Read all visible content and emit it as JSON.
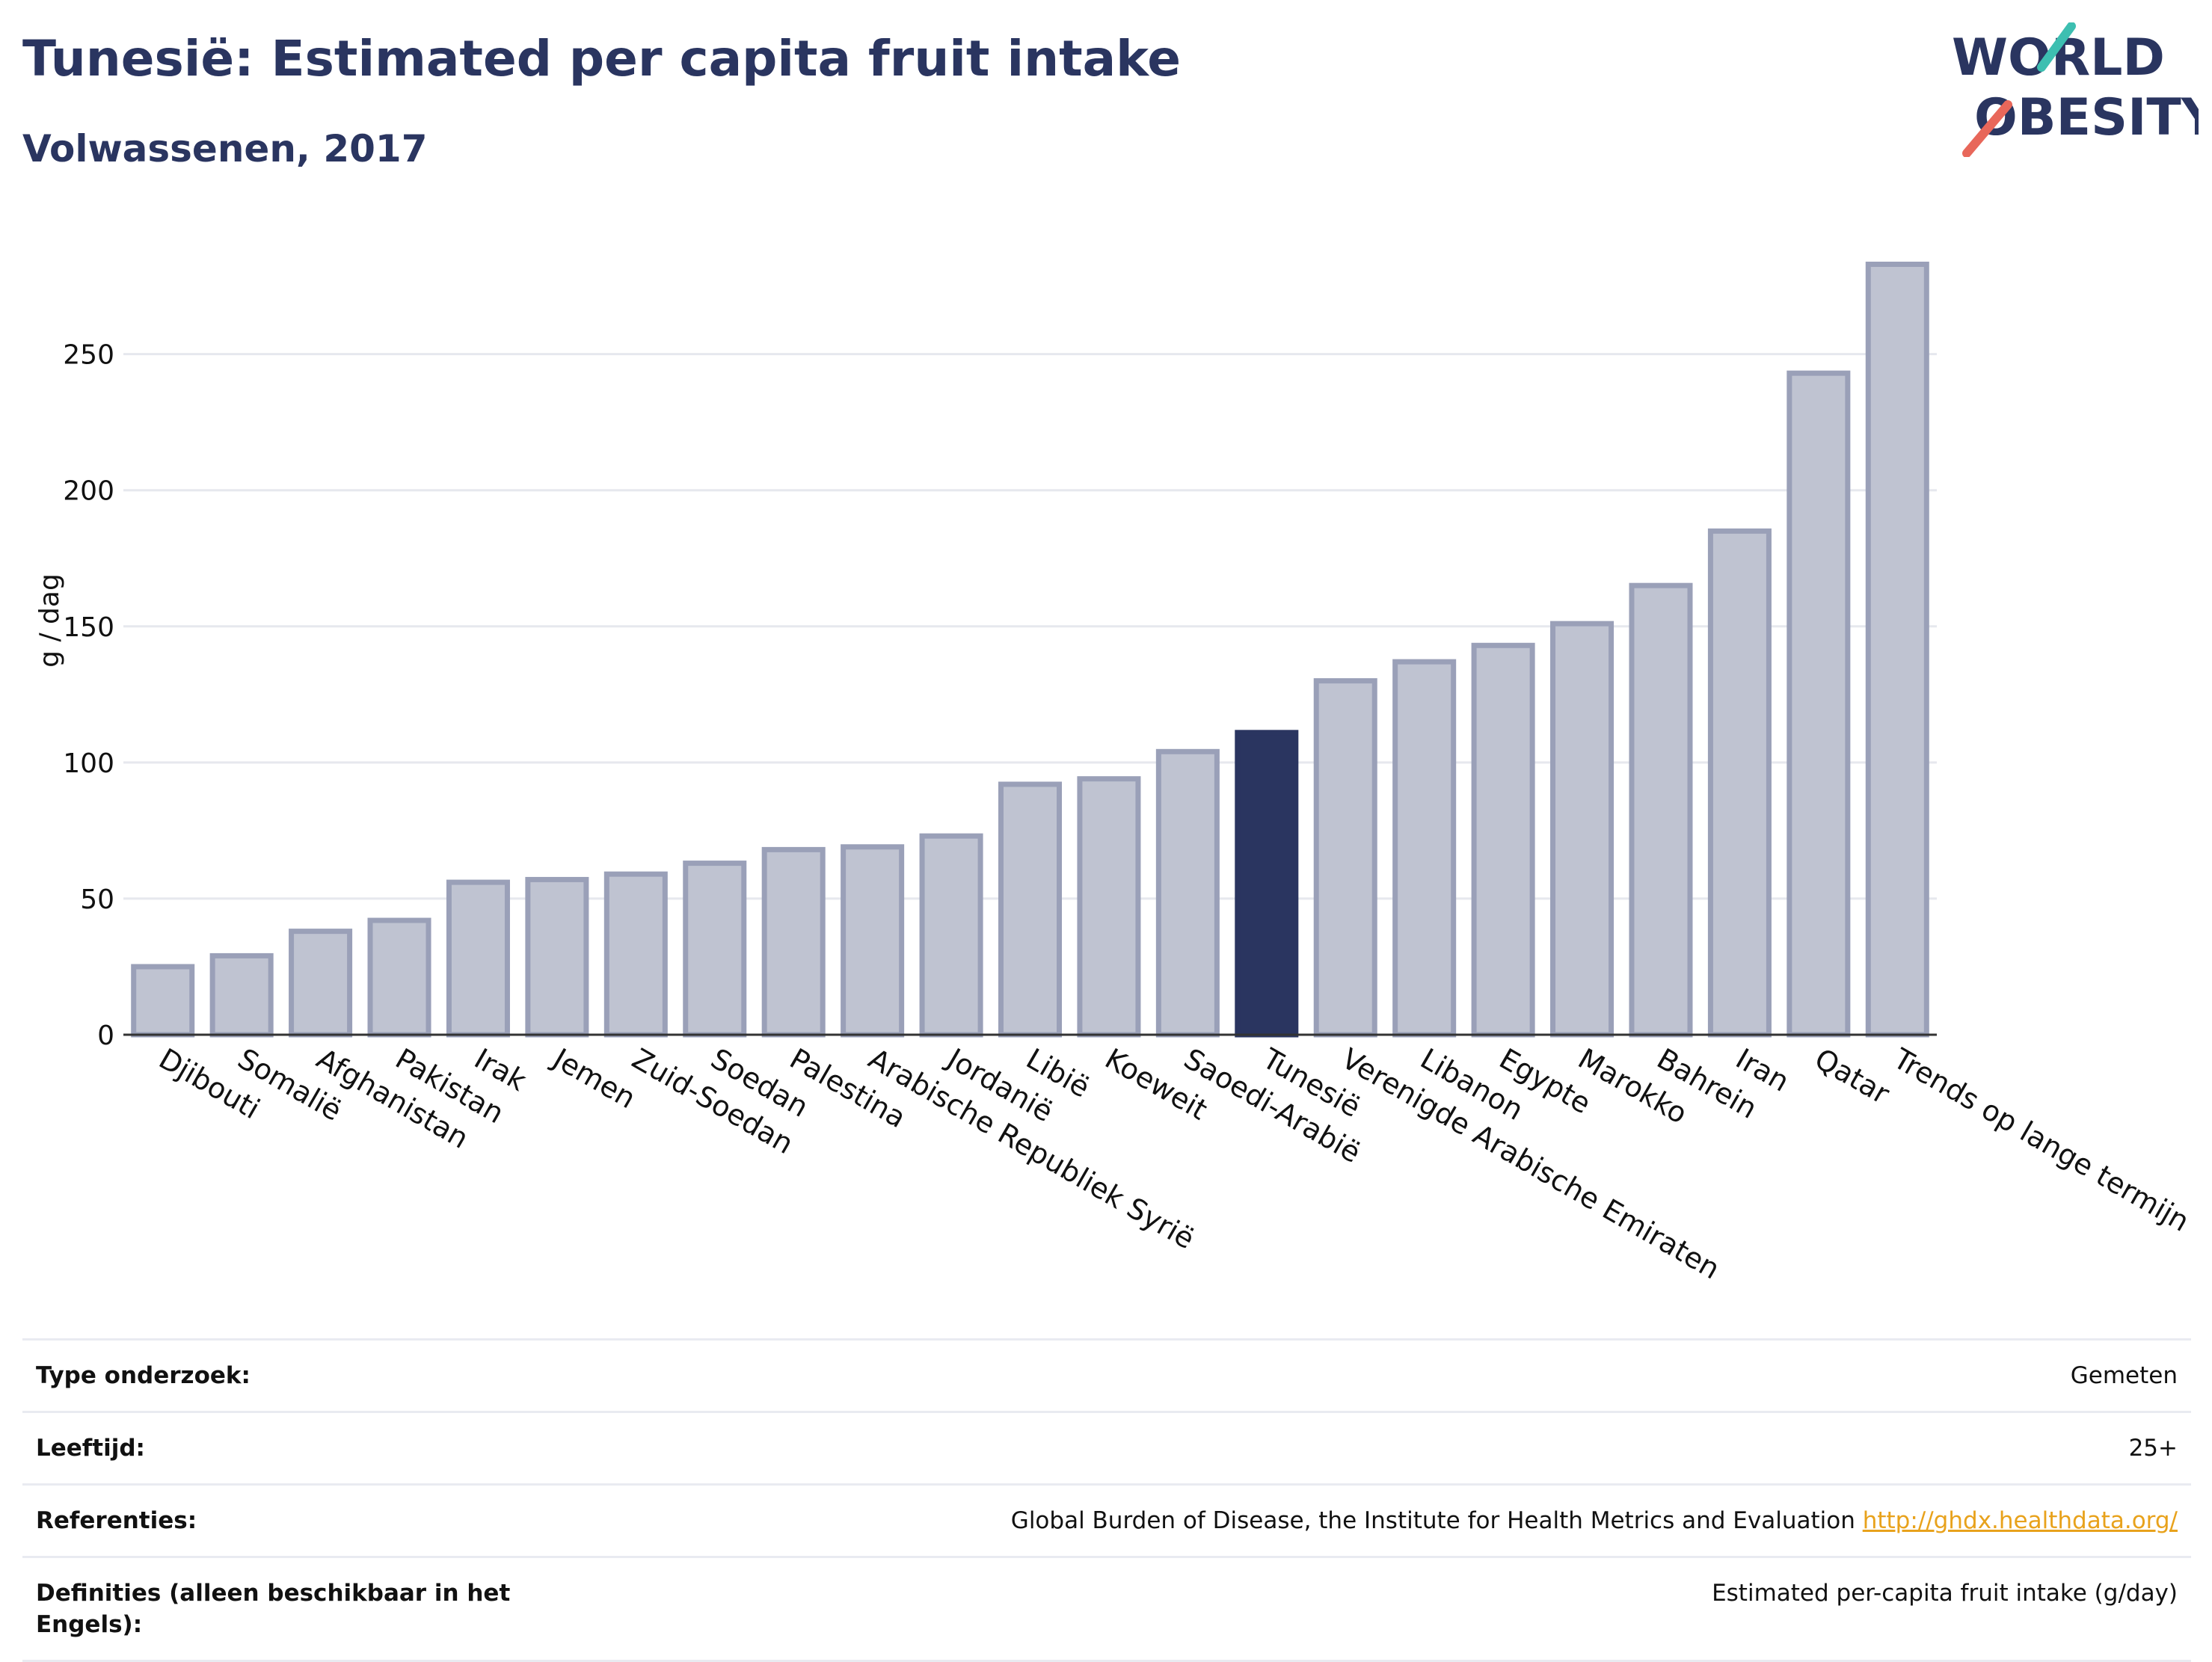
{
  "header": {
    "title": "Tunesië: Estimated per capita fruit intake",
    "subtitle": "Volwassenen, 2017"
  },
  "logo": {
    "line1": "WORLD",
    "line2": "OBESITY"
  },
  "colors": {
    "bar": "#bfc3d1",
    "bar_border": "#9aa0b8",
    "highlight": "#2a3560",
    "title": "#2a3560",
    "accent_red": "#e8675a",
    "accent_teal": "#3dbfb1",
    "link": "#e8a21c"
  },
  "chart_data": {
    "type": "bar",
    "ylabel": "g / dag",
    "ylim": [
      0,
      290
    ],
    "yticks": [
      0,
      50,
      100,
      150,
      200,
      250
    ],
    "grid": true,
    "highlight": "Tunesië",
    "categories": [
      "Djibouti",
      "Somalië",
      "Afghanistan",
      "Pakistan",
      "Irak",
      "Jemen",
      "Zuid-Soedan",
      "Soedan",
      "Palestina",
      "Arabische Republiek Syrië",
      "Jordanië",
      "Libië",
      "Koeweit",
      "Saoedi-Arabië",
      "Tunesië",
      "Verenigde Arabische Emiraten",
      "Libanon",
      "Egypte",
      "Marokko",
      "Bahrein",
      "Iran",
      "Qatar",
      "Trends op lange termijn"
    ],
    "values": [
      25,
      29,
      38,
      42,
      56,
      57,
      59,
      63,
      68,
      69,
      73,
      92,
      94,
      104,
      111,
      130,
      137,
      143,
      151,
      165,
      185,
      243,
      283
    ]
  },
  "table": {
    "rows": [
      {
        "label": "Type onderzoek:",
        "value": "Gemeten"
      },
      {
        "label": "Leeftijd:",
        "value": "25+"
      },
      {
        "label": "Referenties:",
        "value": "Global Burden of Disease, the Institute for Health Metrics and Evaluation",
        "link": "http://ghdx.healthdata.org/"
      },
      {
        "label": "Definities (alleen beschikbaar in het Engels):",
        "value": "Estimated per-capita fruit intake (g/day)"
      }
    ]
  }
}
